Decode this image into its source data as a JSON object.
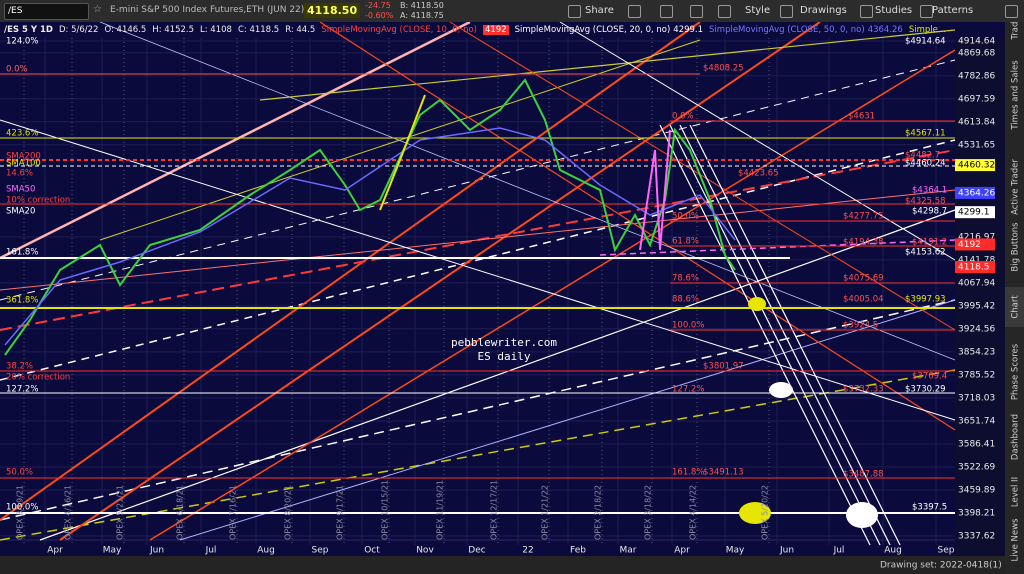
{
  "toolbar": {
    "symbol": "/ES",
    "description": "E-mini S&P 500 Index Futures,ETH (JUN 22)",
    "last": "4118.50",
    "change": "-24.75",
    "change_pct": "-0.60%",
    "bid": "B: 4118.50",
    "ask": "A: 4118.75",
    "buttons": [
      "Share",
      "Style",
      "Drawings",
      "Studies",
      "Patterns"
    ]
  },
  "header": {
    "items": [
      "/ES 5 Y 1D",
      "D: 5/6/22",
      "O: 4146.5",
      "H: 4152.5",
      "L: 4108",
      "C: 4118.5",
      "R: 44.5"
    ],
    "studies": [
      {
        "name": "SimpleMovingAvg (CLOSE, 10, 0, no)",
        "value": "4192"
      },
      {
        "name": "SimpleMovingAvg (CLOSE, 20, 0, no)",
        "value": "4299.1"
      },
      {
        "name": "SimpleMovingAvg (CLOSE, 50, 0, no)",
        "value": "4364.26"
      }
    ],
    "more": "Simple..."
  },
  "price_axis": {
    "labels": [
      4914.64,
      4869.68,
      4782.86,
      4697.59,
      4613.84,
      4531.65,
      4216.97,
      4141.78,
      4067.94,
      3995.42,
      3924.56,
      3854.23,
      3785.52,
      3718.03,
      3651.74,
      3586.41,
      3522.69,
      3459.89,
      3398.21,
      3337.62
    ],
    "markers": [
      4460.32,
      4364.26,
      4299.1,
      4192,
      4118.5
    ]
  },
  "time_axis": {
    "labels": [
      "Apr",
      "May",
      "Jun",
      "Jul",
      "Aug",
      "Sep",
      "Oct",
      "Nov",
      "Dec",
      "22",
      "Feb",
      "Mar",
      "Apr",
      "May",
      "Jun",
      "Jul",
      "Aug",
      "Sep"
    ]
  },
  "opex_labels": [
    "OPEX 3/19/21",
    "OPEX 4/16/21",
    "OPEX 5/21/21",
    "OPEX 6/18/21",
    "OPEX 7/16/21",
    "OPEX 8/20/21",
    "OPEX 9/17/21",
    "OPEX 10/15/21",
    "OPEX 11/19/21",
    "OPEX 12/17/21",
    "OPEX 1/21/22",
    "OPEX 2/18/22",
    "OPEX 3/18/22",
    "OPEX 4/14/22",
    "OPEX 5/20/22"
  ],
  "levels_left": [
    "124.0%",
    "0.0%",
    "423.6%",
    "SMA200",
    "SMA100",
    "14.6%",
    "SMA50",
    "10% correction",
    "SMA20",
    "161.8%",
    "361.8%",
    "38.2%",
    "20% correction",
    "127.2%",
    "50.0%",
    "100.0%"
  ],
  "levels_right": [
    "$4914.64",
    "$4808.25",
    "$4631",
    "$4567.11",
    "$4482.7",
    "$4460.24",
    "$4423.65",
    "$4364.1",
    "$4325.58",
    "$4298.7",
    "$4277.75",
    "$4194.38",
    "$4191.2",
    "$4153.62",
    "$4075.69",
    "$4005.04",
    "$3997.93",
    "$3924.5",
    "$3801.97",
    "$3769.4",
    "$3732.33",
    "$3730.29",
    "$3491.13",
    "$3487.88",
    "$3397.5"
  ],
  "fib_labels": [
    "0.0%",
    "50.0%",
    "61.8%",
    "78.6%",
    "88.6%",
    "100.0%",
    "127.2%",
    "161.8%"
  ],
  "watermark": [
    "pebblewriter.com",
    "ES daily"
  ],
  "sidebar": {
    "tabs": [
      "Trade",
      "Times and Sales",
      "Active Trader",
      "Big Buttons",
      "Chart",
      "Phase Scores",
      "Dashboard",
      "Level II",
      "Live News"
    ]
  },
  "status": "Drawing set: 2022-0418(1)"
}
